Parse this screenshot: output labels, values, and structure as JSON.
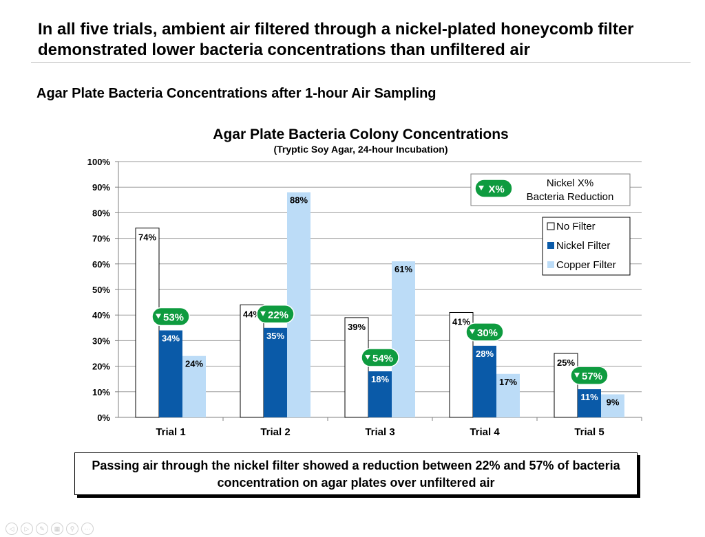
{
  "slide": {
    "title": "In all five trials, ambient air filtered through a nickel-plated honeycomb filter demonstrated lower bacteria concentrations than unfiltered air",
    "subtitle": "Agar Plate Bacteria Concentrations after 1-hour Air Sampling",
    "callout": "Passing air through the nickel filter showed a reduction between 22% and 57% of bacteria concentration on agar plates over unfiltered air"
  },
  "chart_data": {
    "type": "bar",
    "title": "Agar Plate Bacteria Colony Concentrations",
    "subtitle": "(Tryptic Soy Agar, 24-hour Incubation)",
    "categories": [
      "Trial 1",
      "Trial 2",
      "Trial 3",
      "Trial 4",
      "Trial 5"
    ],
    "y_ticks": [
      "0%",
      "10%",
      "20%",
      "30%",
      "40%",
      "50%",
      "60%",
      "70%",
      "80%",
      "90%",
      "100%"
    ],
    "ylim": [
      0,
      100
    ],
    "grid": true,
    "series": [
      {
        "name": "No Filter",
        "values": [
          74,
          44,
          39,
          41,
          25
        ],
        "labels": [
          "74%",
          "44%",
          "39%",
          "41%",
          "25%"
        ],
        "color": "#ffffff"
      },
      {
        "name": "Nickel Filter",
        "values": [
          34,
          35,
          18,
          28,
          11
        ],
        "labels": [
          "34%",
          "35%",
          "18%",
          "28%",
          "11%"
        ],
        "color": "#0a5aa8"
      },
      {
        "name": "Copper Filter",
        "values": [
          24,
          88,
          61,
          17,
          9
        ],
        "labels": [
          "24%",
          "88%",
          "61%",
          "17%",
          "9%"
        ],
        "color": "#bcdcf7"
      }
    ],
    "reductions": [
      "53%",
      "22%",
      "54%",
      "30%",
      "57%"
    ],
    "reduction_color": "#0e9b3f",
    "legend_position": "right",
    "reduction_legend": {
      "badge": "X%",
      "line1": "Nickel X%",
      "line2": "Bacteria Reduction"
    }
  }
}
